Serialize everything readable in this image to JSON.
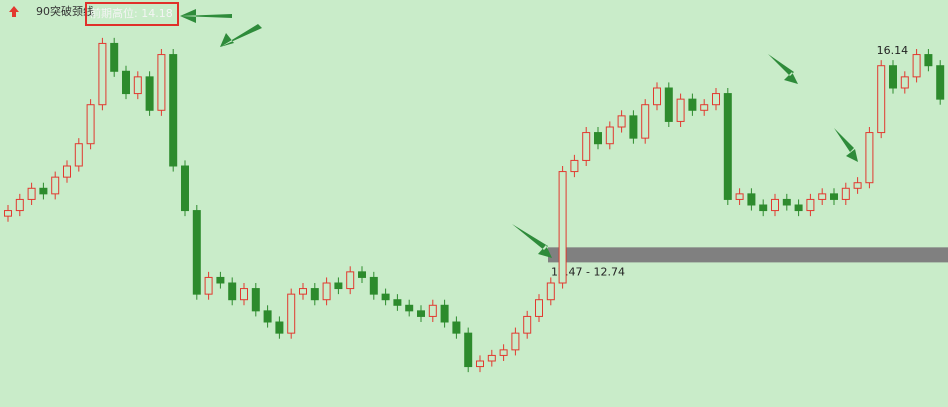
{
  "chart_data": {
    "type": "candlestick",
    "title": "90突破颈线",
    "ylim": [
      10,
      17
    ],
    "up_color": "#e2392f",
    "down_color": "#2d8b2d",
    "open": [
      13.3,
      13.4,
      13.6,
      13.8,
      13.7,
      14.0,
      14.2,
      14.6,
      15.3,
      16.4,
      15.9,
      15.5,
      15.8,
      15.2,
      16.2,
      14.2,
      13.4,
      11.9,
      12.2,
      12.1,
      11.8,
      12.0,
      11.6,
      11.4,
      11.2,
      11.9,
      12.0,
      11.8,
      12.1,
      12.0,
      12.3,
      12.2,
      11.9,
      11.8,
      11.7,
      11.6,
      11.5,
      11.7,
      11.4,
      11.2,
      10.6,
      10.7,
      10.8,
      10.9,
      11.2,
      11.5,
      11.8,
      12.1,
      14.1,
      14.3,
      14.8,
      14.6,
      14.9,
      15.1,
      14.7,
      15.3,
      15.6,
      15.0,
      15.4,
      15.2,
      15.3,
      15.5,
      13.6,
      13.7,
      13.5,
      13.4,
      13.6,
      13.5,
      13.4,
      13.6,
      13.7,
      13.6,
      13.8,
      13.9,
      14.8,
      16.0,
      15.6,
      15.8,
      16.2,
      16.0
    ],
    "high": [
      13.5,
      13.7,
      13.9,
      13.9,
      14.1,
      14.3,
      14.7,
      15.4,
      16.5,
      16.5,
      16.0,
      15.9,
      15.9,
      16.3,
      16.3,
      14.3,
      13.5,
      12.3,
      12.3,
      12.2,
      12.1,
      12.1,
      11.7,
      11.5,
      12.0,
      12.1,
      12.1,
      12.2,
      12.2,
      12.4,
      12.4,
      12.3,
      12.0,
      11.9,
      11.8,
      11.7,
      11.8,
      11.8,
      11.5,
      11.3,
      10.8,
      10.9,
      11.0,
      11.3,
      11.6,
      11.9,
      12.2,
      14.2,
      14.4,
      14.9,
      14.9,
      15.0,
      15.2,
      15.2,
      15.4,
      15.7,
      15.7,
      15.5,
      15.5,
      15.4,
      15.6,
      15.6,
      13.8,
      13.8,
      13.6,
      13.7,
      13.7,
      13.6,
      13.7,
      13.8,
      13.8,
      13.9,
      14.0,
      14.9,
      16.1,
      16.1,
      15.9,
      16.3,
      16.3,
      16.1
    ],
    "low": [
      13.2,
      13.3,
      13.5,
      13.6,
      13.6,
      13.9,
      14.1,
      14.5,
      15.2,
      15.8,
      15.4,
      15.4,
      15.1,
      15.1,
      14.1,
      13.3,
      11.8,
      11.8,
      12.0,
      11.7,
      11.7,
      11.5,
      11.3,
      11.1,
      11.1,
      11.8,
      11.7,
      11.7,
      11.9,
      11.9,
      12.1,
      11.8,
      11.7,
      11.6,
      11.5,
      11.4,
      11.4,
      11.3,
      11.1,
      10.5,
      10.5,
      10.6,
      10.7,
      10.8,
      11.1,
      11.4,
      11.7,
      12.0,
      14.0,
      14.2,
      14.5,
      14.5,
      14.8,
      14.6,
      14.6,
      15.2,
      14.9,
      14.9,
      15.1,
      15.1,
      15.2,
      13.5,
      13.5,
      13.4,
      13.3,
      13.3,
      13.4,
      13.3,
      13.3,
      13.5,
      13.5,
      13.5,
      13.7,
      13.8,
      14.7,
      15.5,
      15.5,
      15.7,
      15.9,
      15.3
    ],
    "close": [
      13.4,
      13.6,
      13.8,
      13.7,
      14.0,
      14.2,
      14.6,
      15.3,
      16.4,
      15.9,
      15.5,
      15.8,
      15.2,
      16.2,
      14.2,
      13.4,
      11.9,
      12.2,
      12.1,
      11.8,
      12.0,
      11.6,
      11.4,
      11.2,
      11.9,
      12.0,
      11.8,
      12.1,
      12.0,
      12.3,
      12.2,
      11.9,
      11.8,
      11.7,
      11.6,
      11.5,
      11.7,
      11.4,
      11.2,
      10.6,
      10.7,
      10.8,
      10.9,
      11.2,
      11.5,
      11.8,
      12.1,
      14.1,
      14.3,
      14.8,
      14.6,
      14.9,
      15.1,
      14.7,
      15.3,
      15.6,
      15.0,
      15.4,
      15.2,
      15.3,
      15.5,
      13.6,
      13.7,
      13.5,
      13.4,
      13.6,
      13.5,
      13.4,
      13.6,
      13.7,
      13.6,
      13.8,
      13.9,
      14.8,
      16.0,
      15.6,
      15.8,
      16.2,
      16.0,
      15.4
    ],
    "previous_high_label": "前期高位: 14.18",
    "zone": {
      "label": "12.47 - 12.74",
      "low": 12.47,
      "high": 12.74,
      "color": "#808080"
    },
    "peak_label": "16.14"
  }
}
